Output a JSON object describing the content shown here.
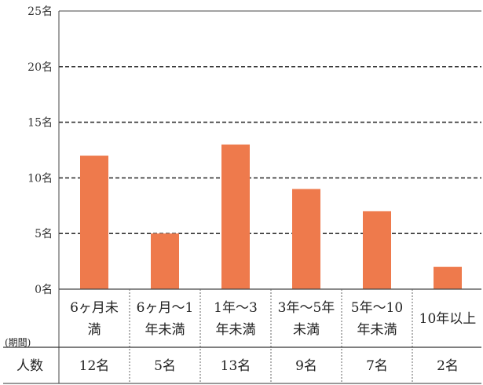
{
  "chart_data": {
    "type": "bar",
    "title": "",
    "xlabel": "",
    "ylabel": "",
    "ylim": [
      0,
      25
    ],
    "yticks": [
      0,
      5,
      10,
      15,
      20,
      25
    ],
    "ytick_labels": [
      "0名",
      "5名",
      "10名",
      "15名",
      "20名",
      "25名"
    ],
    "grid": "dashed horizontal",
    "bar_color": "#EE7A4C",
    "categories": [
      [
        "6ヶ月未",
        "満"
      ],
      [
        "6ヶ月～1",
        "年未満"
      ],
      [
        "1年～3",
        "年未満"
      ],
      [
        "3年～5年",
        "未満"
      ],
      [
        "5年～10",
        "年未満"
      ],
      [
        "10年以上"
      ]
    ],
    "values": [
      12,
      5,
      13,
      9,
      7,
      2
    ],
    "table": {
      "period_label": "(期間)",
      "count_label": "人数",
      "count_labels": [
        "12名",
        "5名",
        "13名",
        "9名",
        "7名",
        "2名"
      ]
    }
  }
}
